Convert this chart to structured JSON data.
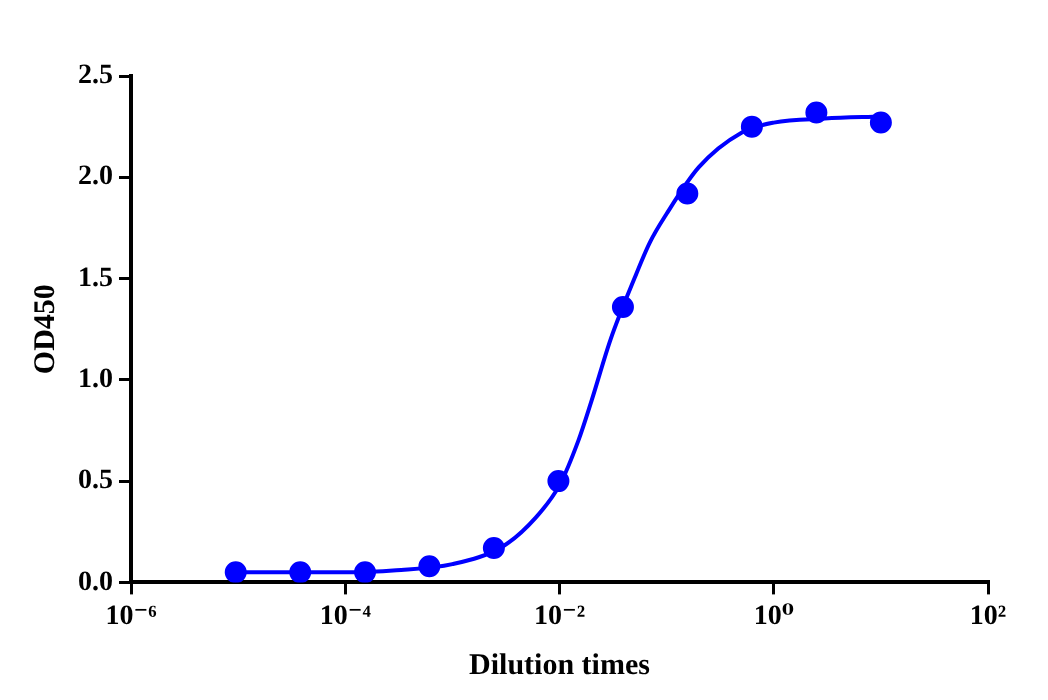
{
  "chart_data": {
    "type": "scatter",
    "xlabel": "Dilution times",
    "ylabel": "OD450",
    "log": "x",
    "grid": false,
    "legend": false,
    "xlim": [
      1e-06,
      100
    ],
    "xticks": [
      {
        "value": 1e-06,
        "label": "10⁻⁶"
      },
      {
        "value": 0.0001,
        "label": "10⁻⁴"
      },
      {
        "value": 0.01,
        "label": "10⁻²"
      },
      {
        "value": 1,
        "label": "10⁰"
      },
      {
        "value": 100,
        "label": "10²"
      }
    ],
    "ylim": [
      0,
      2.5
    ],
    "yticks": [
      {
        "value": 0,
        "label": "0.0"
      },
      {
        "value": 0.5,
        "label": "0.5"
      },
      {
        "value": 1,
        "label": "1.0"
      },
      {
        "value": 1.5,
        "label": "1.5"
      },
      {
        "value": 2,
        "label": "2.0"
      },
      {
        "value": 2.5,
        "label": "2.5"
      }
    ],
    "series": [
      {
        "type": "scatter",
        "marker": "circle",
        "color": "#0000ff",
        "x": [
          9.5e-06,
          3.8e-05,
          0.000153,
          0.00061,
          0.00244,
          0.00977,
          0.0391,
          0.156,
          0.625,
          2.5,
          10
        ],
        "values": [
          0.05,
          0.05,
          0.05,
          0.08,
          0.17,
          0.5,
          1.36,
          1.92,
          2.25,
          2.32,
          2.27
        ]
      },
      {
        "type": "line",
        "marker": "none",
        "line_style": "solid",
        "color": "#0000ff",
        "x": [
          9.5e-06,
          0.0001,
          0.0003,
          0.001,
          0.003,
          0.006,
          0.01,
          0.015,
          0.02,
          0.03,
          0.05,
          0.07,
          0.1,
          0.2,
          0.5,
          1,
          3,
          10
        ],
        "values": [
          0.05,
          0.05,
          0.06,
          0.09,
          0.18,
          0.32,
          0.48,
          0.7,
          0.9,
          1.2,
          1.5,
          1.68,
          1.82,
          2.05,
          2.22,
          2.27,
          2.29,
          2.3
        ]
      }
    ]
  }
}
